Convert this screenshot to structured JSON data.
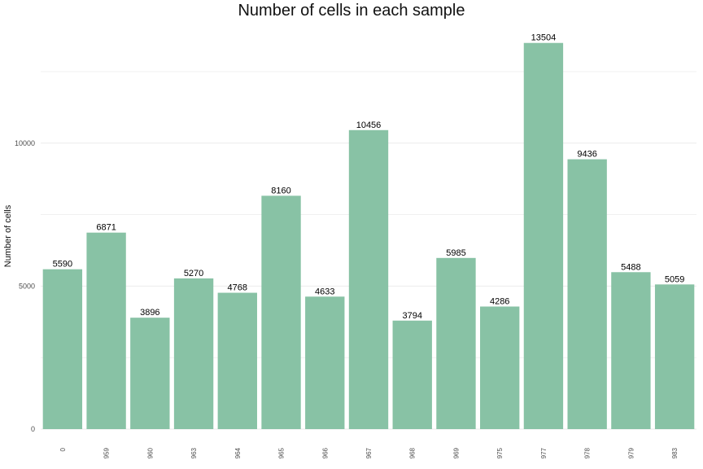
{
  "chart_data": {
    "type": "bar",
    "title": "Number of cells in each sample",
    "xlabel": "",
    "ylabel": "Number of cells",
    "categories": [
      "0",
      "959",
      "960",
      "963",
      "964",
      "965",
      "966",
      "967",
      "968",
      "969",
      "975",
      "977",
      "978",
      "979",
      "983"
    ],
    "values": [
      5590,
      6871,
      3896,
      5270,
      4768,
      8160,
      4633,
      10456,
      3794,
      5985,
      4286,
      13504,
      9436,
      5488,
      5059
    ],
    "ylim": [
      0,
      14000
    ],
    "y_ticks": [
      0,
      5000,
      10000
    ],
    "y_tick_labels": [
      "0",
      "5000",
      "10000"
    ],
    "grid": true,
    "legend": "none",
    "bar_color": "#88c2a5",
    "x_tick_label_rotation": "vertical"
  }
}
